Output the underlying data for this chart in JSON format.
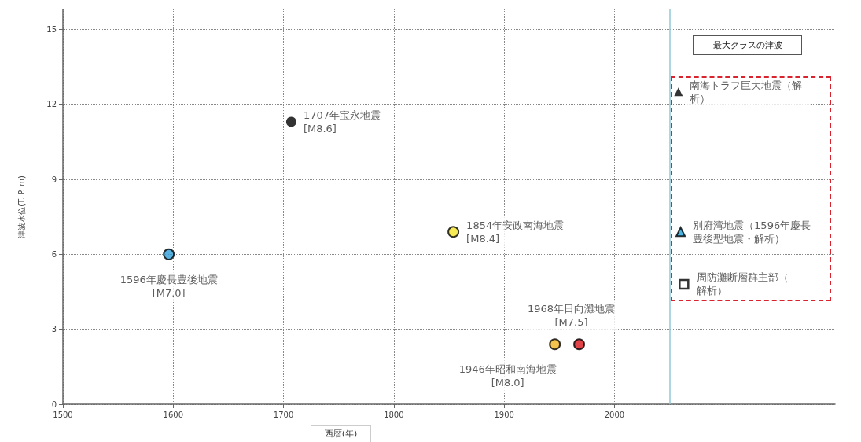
{
  "chart_data": {
    "type": "scatter",
    "xlabel": "西暦(年)",
    "ylabel": "津波水位(T. P. m)",
    "xlim": [
      1500,
      2200
    ],
    "xticks": [
      1500,
      1600,
      1700,
      1800,
      1900,
      2000
    ],
    "ylim": [
      0,
      15.8
    ],
    "yticks": [
      0,
      3,
      6,
      9,
      12,
      15
    ],
    "grid": true,
    "legend": false,
    "series": [
      {
        "name": "1596年慶長豊後地震\n[M7.0]",
        "color": "#2e9ed8",
        "marker": "circle",
        "x": [
          1596
        ],
        "values": [
          6.0
        ]
      },
      {
        "name": "1707年宝永地震\n[M8.6]",
        "color": "#000000",
        "marker": "circle",
        "x": [
          1707
        ],
        "values": [
          11.3
        ]
      },
      {
        "name": "1854年安政南海地震\n[M8.4]",
        "color": "#f5e62a",
        "marker": "circle",
        "x": [
          1854
        ],
        "values": [
          6.9
        ]
      },
      {
        "name": "1946年昭和南海地震\n[M8.0]",
        "color": "#f0b323",
        "marker": "circle",
        "x": [
          1946
        ],
        "values": [
          2.4
        ]
      },
      {
        "name": "1968年日向灘地震\n[M7.5]",
        "color": "#d9141c",
        "marker": "circle",
        "x": [
          1968
        ],
        "values": [
          2.4
        ]
      },
      {
        "name": "南海トラフ巨大地震（解析）",
        "color": "#000000",
        "marker": "triangle",
        "x": [
          2058
        ],
        "values": [
          12.5
        ]
      },
      {
        "name": "別府湾地震（1596年慶長豊後型地震・解析）",
        "color": "#1ba1d8",
        "marker": "triangle",
        "x": [
          2060
        ],
        "values": [
          6.9
        ]
      },
      {
        "name": "周防灘断層群主部（解析）",
        "color": "#000000",
        "marker": "square",
        "x": [
          2063
        ],
        "values": [
          4.8
        ]
      }
    ],
    "ref_lines": [
      {
        "axis": "x",
        "value": 2050,
        "color": "#8fc8d8"
      }
    ],
    "annotations": [
      "最大クラスの津波"
    ]
  }
}
